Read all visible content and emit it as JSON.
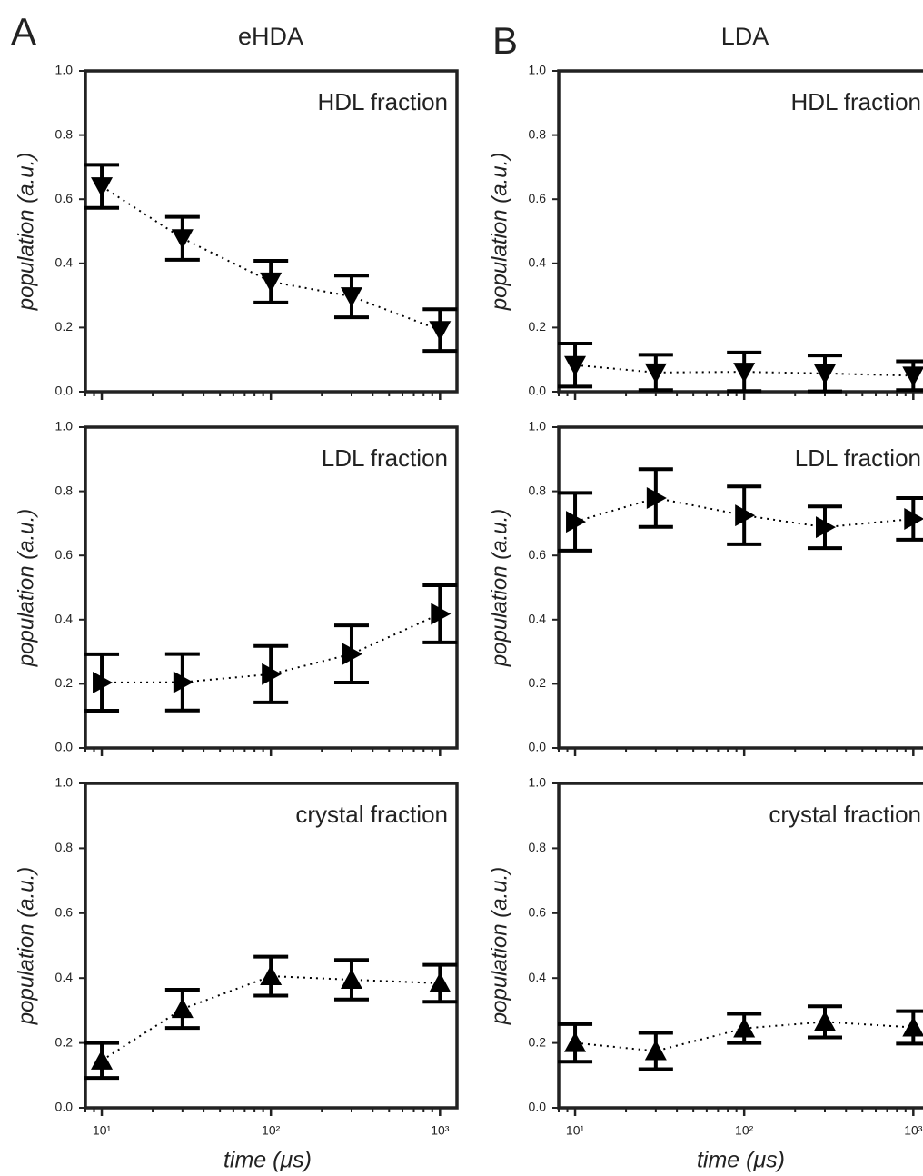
{
  "chart_data": [
    {
      "type": "errorbar",
      "panel_label": "A",
      "title": "eHDA",
      "annotation": "HDL fraction",
      "ylabel": "population (a.u.)",
      "x": [
        10,
        30,
        100,
        300,
        1000
      ],
      "values": [
        0.64,
        0.478,
        0.343,
        0.297,
        0.192
      ],
      "errors": [
        0.067,
        0.067,
        0.065,
        0.065,
        0.065
      ],
      "marker": "triangle-down",
      "color": "#000000",
      "line_style": "dotted",
      "xscale": "log",
      "xlim": [
        8,
        1260
      ],
      "ylim": [
        0,
        1
      ],
      "xticks": [
        {
          "value": 10,
          "label": "10¹"
        },
        {
          "value": 100,
          "label": "10²"
        },
        {
          "value": 1000,
          "label": "10³"
        }
      ],
      "minor_xticks": [
        8,
        9,
        20,
        30,
        40,
        50,
        60,
        70,
        80,
        90,
        200,
        300,
        400,
        500,
        600,
        700,
        800,
        900
      ],
      "show_xtick_labels": false,
      "yticks": [
        {
          "value": 0,
          "label": "0.0"
        },
        0.2,
        0.4,
        0.6,
        0.8,
        {
          "value": 1,
          "label": "1.0"
        }
      ]
    },
    {
      "type": "errorbar",
      "annotation": "LDL fraction",
      "ylabel": "population (a.u.)",
      "x": [
        10,
        30,
        100,
        300,
        1000
      ],
      "values": [
        0.204,
        0.205,
        0.23,
        0.293,
        0.418
      ],
      "errors": [
        0.088,
        0.088,
        0.088,
        0.089,
        0.089
      ],
      "marker": "triangle-right",
      "color": "#000000",
      "line_style": "dotted",
      "xscale": "log",
      "xlim": [
        8,
        1260
      ],
      "ylim": [
        0,
        1
      ],
      "xticks": [
        {
          "value": 10,
          "label": "10¹"
        },
        {
          "value": 100,
          "label": "10²"
        },
        {
          "value": 1000,
          "label": "10³"
        }
      ],
      "minor_xticks": [
        8,
        9,
        20,
        30,
        40,
        50,
        60,
        70,
        80,
        90,
        200,
        300,
        400,
        500,
        600,
        700,
        800,
        900
      ],
      "show_xtick_labels": false,
      "yticks": [
        {
          "value": 0,
          "label": "0.0"
        },
        0.2,
        0.4,
        0.6,
        0.8,
        {
          "value": 1,
          "label": "1.0"
        }
      ]
    },
    {
      "type": "errorbar",
      "annotation": "crystal fraction",
      "ylabel": "population (a.u.)",
      "xlabel": "time (μs)",
      "x": [
        10,
        30,
        100,
        300,
        1000
      ],
      "values": [
        0.146,
        0.305,
        0.406,
        0.395,
        0.384
      ],
      "errors": [
        0.054,
        0.059,
        0.06,
        0.061,
        0.057
      ],
      "marker": "triangle-up",
      "color": "#000000",
      "line_style": "dotted",
      "xscale": "log",
      "xlim": [
        8,
        1260
      ],
      "ylim": [
        0,
        1
      ],
      "xticks": [
        {
          "value": 10,
          "label": "10¹"
        },
        {
          "value": 100,
          "label": "10²"
        },
        {
          "value": 1000,
          "label": "10³"
        }
      ],
      "minor_xticks": [
        8,
        9,
        20,
        30,
        40,
        50,
        60,
        70,
        80,
        90,
        200,
        300,
        400,
        500,
        600,
        700,
        800,
        900
      ],
      "show_xtick_labels": true,
      "yticks": [
        {
          "value": 0,
          "label": "0.0"
        },
        0.2,
        0.4,
        0.6,
        0.8,
        {
          "value": 1,
          "label": "1.0"
        }
      ]
    },
    {
      "type": "errorbar",
      "panel_label": "B",
      "title": "LDA",
      "annotation": "HDL fraction",
      "ylabel": "population (a.u.)",
      "x": [
        10,
        30,
        100,
        300,
        1000
      ],
      "values": [
        0.083,
        0.06,
        0.062,
        0.057,
        0.05
      ],
      "errors": [
        0.067,
        0.055,
        0.06,
        0.056,
        0.045
      ],
      "marker": "triangle-down",
      "color": "#000000",
      "line_style": "dotted",
      "xscale": "log",
      "xlim": [
        8,
        1260
      ],
      "ylim": [
        0,
        1
      ],
      "xticks": [
        {
          "value": 10,
          "label": "10¹"
        },
        {
          "value": 100,
          "label": "10²"
        },
        {
          "value": 1000,
          "label": "10³"
        }
      ],
      "minor_xticks": [
        8,
        9,
        20,
        30,
        40,
        50,
        60,
        70,
        80,
        90,
        200,
        300,
        400,
        500,
        600,
        700,
        800,
        900
      ],
      "show_xtick_labels": false,
      "yticks": [
        {
          "value": 0,
          "label": "0.0"
        },
        0.2,
        0.4,
        0.6,
        0.8,
        {
          "value": 1,
          "label": "1.0"
        }
      ]
    },
    {
      "type": "errorbar",
      "annotation": "LDL fraction",
      "ylabel": "population (a.u.)",
      "x": [
        10,
        30,
        100,
        300,
        1000
      ],
      "values": [
        0.705,
        0.779,
        0.725,
        0.688,
        0.714
      ],
      "errors": [
        0.09,
        0.09,
        0.09,
        0.065,
        0.065
      ],
      "marker": "triangle-right",
      "color": "#000000",
      "line_style": "dotted",
      "xscale": "log",
      "xlim": [
        8,
        1260
      ],
      "ylim": [
        0,
        1
      ],
      "xticks": [
        {
          "value": 10,
          "label": "10¹"
        },
        {
          "value": 100,
          "label": "10²"
        },
        {
          "value": 1000,
          "label": "10³"
        }
      ],
      "minor_xticks": [
        8,
        9,
        20,
        30,
        40,
        50,
        60,
        70,
        80,
        90,
        200,
        300,
        400,
        500,
        600,
        700,
        800,
        900
      ],
      "show_xtick_labels": false,
      "yticks": [
        {
          "value": 0,
          "label": "0.0"
        },
        0.2,
        0.4,
        0.6,
        0.8,
        {
          "value": 1,
          "label": "1.0"
        }
      ]
    },
    {
      "type": "errorbar",
      "annotation": "crystal fraction",
      "ylabel": "population (a.u.)",
      "xlabel": "time (μs)",
      "x": [
        10,
        30,
        100,
        300,
        1000
      ],
      "values": [
        0.2,
        0.175,
        0.245,
        0.265,
        0.248
      ],
      "errors": [
        0.058,
        0.056,
        0.045,
        0.048,
        0.05
      ],
      "marker": "triangle-up",
      "color": "#000000",
      "line_style": "dotted",
      "xscale": "log",
      "xlim": [
        8,
        1260
      ],
      "ylim": [
        0,
        1
      ],
      "xticks": [
        {
          "value": 10,
          "label": "10¹"
        },
        {
          "value": 100,
          "label": "10²"
        },
        {
          "value": 1000,
          "label": "10³"
        }
      ],
      "minor_xticks": [
        8,
        9,
        20,
        30,
        40,
        50,
        60,
        70,
        80,
        90,
        200,
        300,
        400,
        500,
        600,
        700,
        800,
        900
      ],
      "show_xtick_labels": true,
      "yticks": [
        {
          "value": 0,
          "label": "0.0"
        },
        0.2,
        0.4,
        0.6,
        0.8,
        {
          "value": 1,
          "label": "1.0"
        }
      ]
    }
  ]
}
